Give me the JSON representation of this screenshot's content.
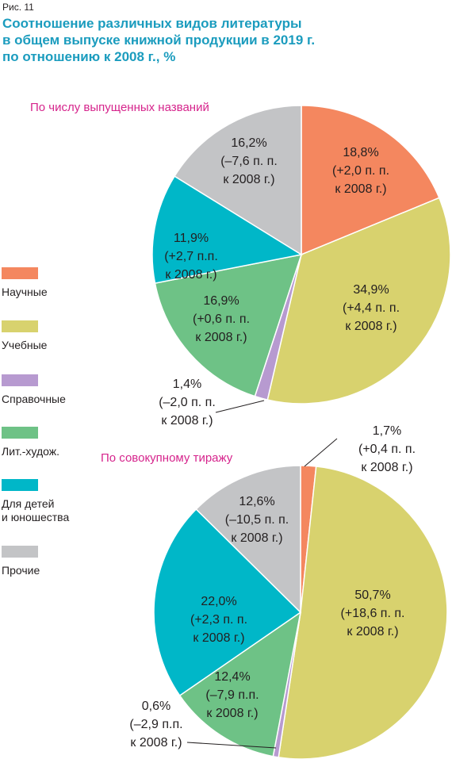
{
  "figure_label": "Рис. 11",
  "title_lines": [
    "Соотношение различных видов литературы",
    "в общем выпуске книжной продукции в 2019 г.",
    "по отношению к 2008 г., %"
  ],
  "colors": {
    "title": "#1b9cbe",
    "subtitle": "#d6248c",
    "Научные": "#f4875f",
    "Учебные": "#d8d26e",
    "Справочные": "#b79ad0",
    "Лит.-худож.": "#6ec286",
    "Для детей и юношества": "#00b7c8",
    "Прочие": "#c3c4c6"
  },
  "legend": [
    {
      "key": "Научные",
      "lines": [
        "Научные"
      ]
    },
    {
      "key": "Учебные",
      "lines": [
        "Учебные"
      ]
    },
    {
      "key": "Справочные",
      "lines": [
        "Справочные"
      ]
    },
    {
      "key": "Лит.-худож.",
      "lines": [
        "Лит.-худож."
      ]
    },
    {
      "key": "Для детей и юношества",
      "lines": [
        "Для детей",
        "и юношества"
      ]
    },
    {
      "key": "Прочие",
      "lines": [
        "Прочие"
      ]
    }
  ],
  "chart_data": [
    {
      "type": "pie",
      "subtitle": "По числу выпущенных названий",
      "slices": [
        {
          "name": "Научные",
          "value": 18.8,
          "label_lines": [
            "18,8%",
            "(+2,0 п. п.",
            "к 2008 г.)"
          ]
        },
        {
          "name": "Учебные",
          "value": 34.9,
          "label_lines": [
            "34,9%",
            "(+4,4 п. п.",
            "к 2008 г.)"
          ]
        },
        {
          "name": "Справочные",
          "value": 1.4,
          "label_lines": [
            "1,4%",
            "(–2,0 п. п.",
            "к 2008 г.)"
          ]
        },
        {
          "name": "Лит.-худож.",
          "value": 16.9,
          "label_lines": [
            "16,9%",
            "(+0,6 п. п.",
            "к 2008 г.)"
          ]
        },
        {
          "name": "Для детей и юношества",
          "value": 11.9,
          "label_lines": [
            "11,9%",
            "(+2,7 п.п.",
            "к 2008 г.)"
          ]
        },
        {
          "name": "Прочие",
          "value": 16.2,
          "label_lines": [
            "16,2%",
            "(–7,6 п. п.",
            "к 2008 г.)"
          ]
        }
      ]
    },
    {
      "type": "pie",
      "subtitle": "По совокупному тиражу",
      "slices": [
        {
          "name": "Научные",
          "value": 1.7,
          "label_lines": [
            "1,7%",
            "(+0,4 п. п.",
            "к 2008 г.)"
          ]
        },
        {
          "name": "Учебные",
          "value": 50.7,
          "label_lines": [
            "50,7%",
            "(+18,6 п. п.",
            "к 2008 г.)"
          ]
        },
        {
          "name": "Справочные",
          "value": 0.6,
          "label_lines": [
            "0,6%",
            "(–2,9 п.п.",
            "к 2008 г.)"
          ]
        },
        {
          "name": "Лит.-худож.",
          "value": 12.4,
          "label_lines": [
            "12,4%",
            "(–7,9 п.п.",
            "к 2008 г.)"
          ]
        },
        {
          "name": "Для детей и юношества",
          "value": 22.0,
          "label_lines": [
            "22,0%",
            "(+2,3 п. п.",
            "к 2008 г.)"
          ]
        },
        {
          "name": "Прочие",
          "value": 12.6,
          "label_lines": [
            "12,6%",
            "(–10,5 п. п.",
            "к 2008 г.)"
          ]
        }
      ]
    }
  ]
}
